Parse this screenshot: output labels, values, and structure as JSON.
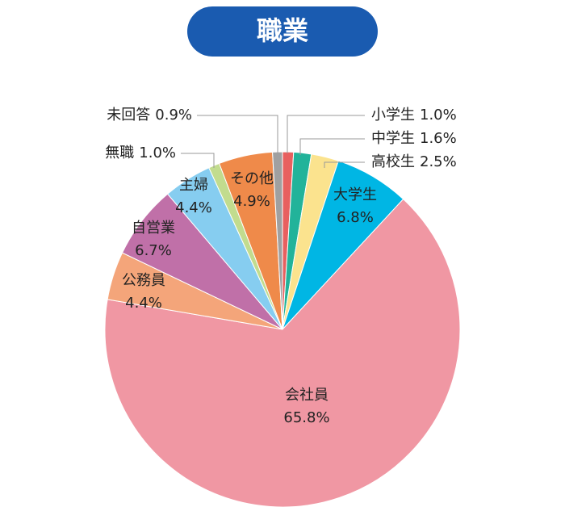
{
  "chart_data": {
    "type": "pie",
    "title": "職業",
    "categories": [
      "小学生",
      "中学生",
      "高校生",
      "大学生",
      "会社員",
      "公務員",
      "自営業",
      "主婦",
      "無職",
      "その他",
      "未回答"
    ],
    "values": [
      1.0,
      1.6,
      2.5,
      6.8,
      65.8,
      4.4,
      6.7,
      4.4,
      1.0,
      4.9,
      0.9
    ],
    "value_labels": [
      "1.0%",
      "1.6%",
      "2.5%",
      "6.8%",
      "65.8%",
      "4.4%",
      "6.7%",
      "4.4%",
      "1.0%",
      "4.9%",
      "0.9%"
    ],
    "colors": [
      "#e8605f",
      "#22b39a",
      "#fbe38e",
      "#00b6e4",
      "#f097a3",
      "#f4a57a",
      "#c070a8",
      "#86cdf0",
      "#c2dc8e",
      "#ef8a4a",
      "#a0a0a0"
    ]
  }
}
